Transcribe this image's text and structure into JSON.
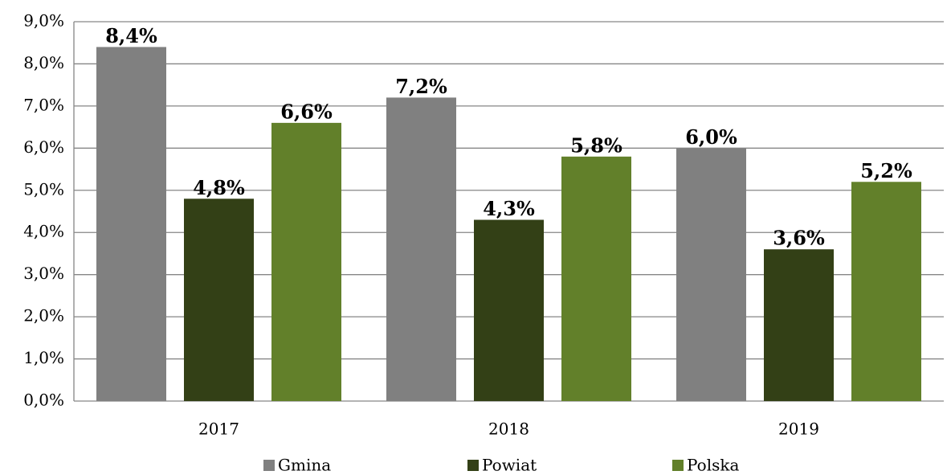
{
  "chart_data": {
    "type": "bar",
    "categories": [
      "2017",
      "2018",
      "2019"
    ],
    "series": [
      {
        "name": "Gmina",
        "color": "#808080",
        "values": [
          8.4,
          7.2,
          6.0
        ],
        "value_labels": [
          "8,4%",
          "7,2%",
          "6,0%"
        ]
      },
      {
        "name": "Powiat",
        "color": "#334016",
        "values": [
          4.8,
          4.3,
          3.6
        ],
        "value_labels": [
          "4,8%",
          "4,3%",
          "3,6%"
        ]
      },
      {
        "name": "Polska",
        "color": "#62802a",
        "values": [
          6.6,
          5.8,
          5.2
        ],
        "value_labels": [
          "6,6%",
          "5,8%",
          "5,2%"
        ]
      }
    ],
    "ylim": [
      0,
      9
    ],
    "yticks": [
      {
        "value": 0,
        "label": "0,0%"
      },
      {
        "value": 1,
        "label": "1,0%"
      },
      {
        "value": 2,
        "label": "2,0%"
      },
      {
        "value": 3,
        "label": "3,0%"
      },
      {
        "value": 4,
        "label": "4,0%"
      },
      {
        "value": 5,
        "label": "5,0%"
      },
      {
        "value": 6,
        "label": "6,0%"
      },
      {
        "value": 7,
        "label": "7,0%"
      },
      {
        "value": 8,
        "label": "8,0%"
      },
      {
        "value": 9,
        "label": "9,0%"
      }
    ],
    "grid": true,
    "legend": "bottom"
  }
}
